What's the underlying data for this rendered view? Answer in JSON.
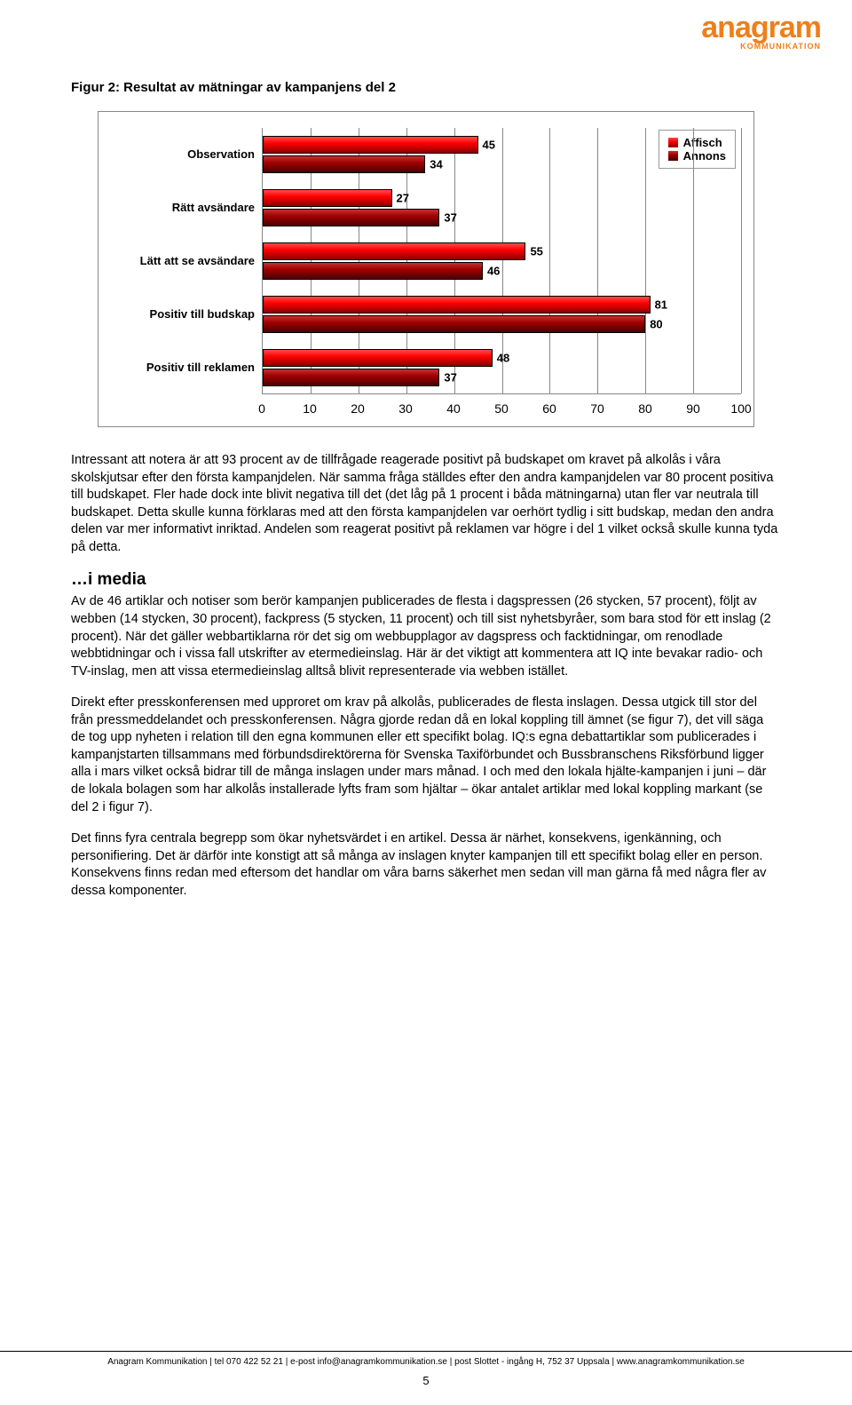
{
  "logo": {
    "text": "anagram",
    "sub": "KOMMUNIKATION",
    "color": "#ef7f1a"
  },
  "figure": {
    "title": "Figur 2: Resultat av mätningar av kampanjens del 2",
    "type": "bar-horizontal",
    "xlim": [
      0,
      100
    ],
    "xtick_step": 10,
    "xticks": [
      "0",
      "10",
      "20",
      "30",
      "40",
      "50",
      "60",
      "70",
      "80",
      "90",
      "100"
    ],
    "grid_color": "#888888",
    "background": "#ffffff",
    "label_fontsize": 13,
    "legend": {
      "items": [
        {
          "label": "Affisch",
          "color_top": "#ff4c4c",
          "color_mid": "#ff0000",
          "color_bot": "#8b0000"
        },
        {
          "label": "Annons",
          "color_top": "#c73030",
          "color_mid": "#a00000",
          "color_bot": "#4a0000"
        }
      ]
    },
    "categories": [
      {
        "label": "Observation",
        "affisch": 45,
        "annons": 34
      },
      {
        "label": "Rätt avsändare",
        "affisch": 27,
        "annons": 37
      },
      {
        "label": "Lätt att se avsändare",
        "affisch": 55,
        "annons": 46
      },
      {
        "label": "Positiv till budskap",
        "affisch": 81,
        "annons": 80
      },
      {
        "label": "Positiv till reklamen",
        "affisch": 48,
        "annons": 37
      }
    ]
  },
  "para1": "Intressant att notera är att 93 procent av de tillfrågade reagerade positivt på budskapet om kravet på alkolås i våra skolskjutsar efter den första kampanjdelen. När samma fråga ställdes efter den andra kampanjdelen var 80 procent positiva till budskapet. Fler hade dock inte blivit negativa till det (det låg på 1 procent i båda mätningarna) utan fler var neutrala till budskapet. Detta skulle kunna förklaras med att den första kampanjdelen var oerhört tydlig i sitt budskap, medan den andra delen var mer informativt inriktad. Andelen som reagerat positivt på reklamen var högre i del 1 vilket också skulle kunna tyda på detta.",
  "subhead": "…i media",
  "para2": "Av de 46 artiklar och notiser som berör kampanjen publicerades de flesta i dagspressen (26 stycken, 57 procent), följt av webben (14 stycken, 30 procent), fackpress (5 stycken, 11 procent) och till sist nyhetsbyråer, som bara stod för ett inslag (2 procent). När det gäller webbartiklarna rör det sig om webbupplagor av dagspress och facktidningar, om renodlade webbtidningar och i vissa fall utskrifter av etermedieinslag. Här är det viktigt att kommentera att IQ inte bevakar radio- och TV-inslag, men att vissa etermedieinslag alltså blivit representerade via webben istället.",
  "para3": "Direkt efter presskonferensen med upproret om krav på alkolås, publicerades de flesta inslagen. Dessa utgick till stor del från pressmeddelandet och presskonferensen. Några gjorde redan då en lokal koppling till ämnet (se figur 7), det vill säga de tog upp nyheten i relation till den egna kommunen eller ett specifikt bolag. IQ:s egna debattartiklar som publicerades i kampanjstarten tillsammans med förbundsdirektörerna för Svenska Taxiförbundet och Bussbranschens Riksförbund ligger alla i mars vilket också bidrar till de många inslagen under mars månad. I och med den lokala hjälte-kampanjen i juni – där de lokala bolagen som har alkolås installerade lyfts fram som hjältar – ökar antalet artiklar med lokal koppling markant (se del 2 i figur 7).",
  "para4": "Det finns fyra centrala begrepp som ökar nyhetsvärdet i en artikel. Dessa är närhet, konsekvens, igenkänning, och personifiering. Det är därför inte konstigt att så många av inslagen knyter kampanjen till ett specifikt bolag eller en person. Konsekvens finns redan med eftersom det handlar om våra barns säkerhet men sedan vill man gärna få med några fler av dessa komponenter.",
  "footer": {
    "line": "Anagram Kommunikation | tel 070 422 52 21 | e-post info@anagramkommunikation.se | post Slottet - ingång H, 752 37 Uppsala | www.anagramkommunikation.se",
    "page": "5"
  }
}
